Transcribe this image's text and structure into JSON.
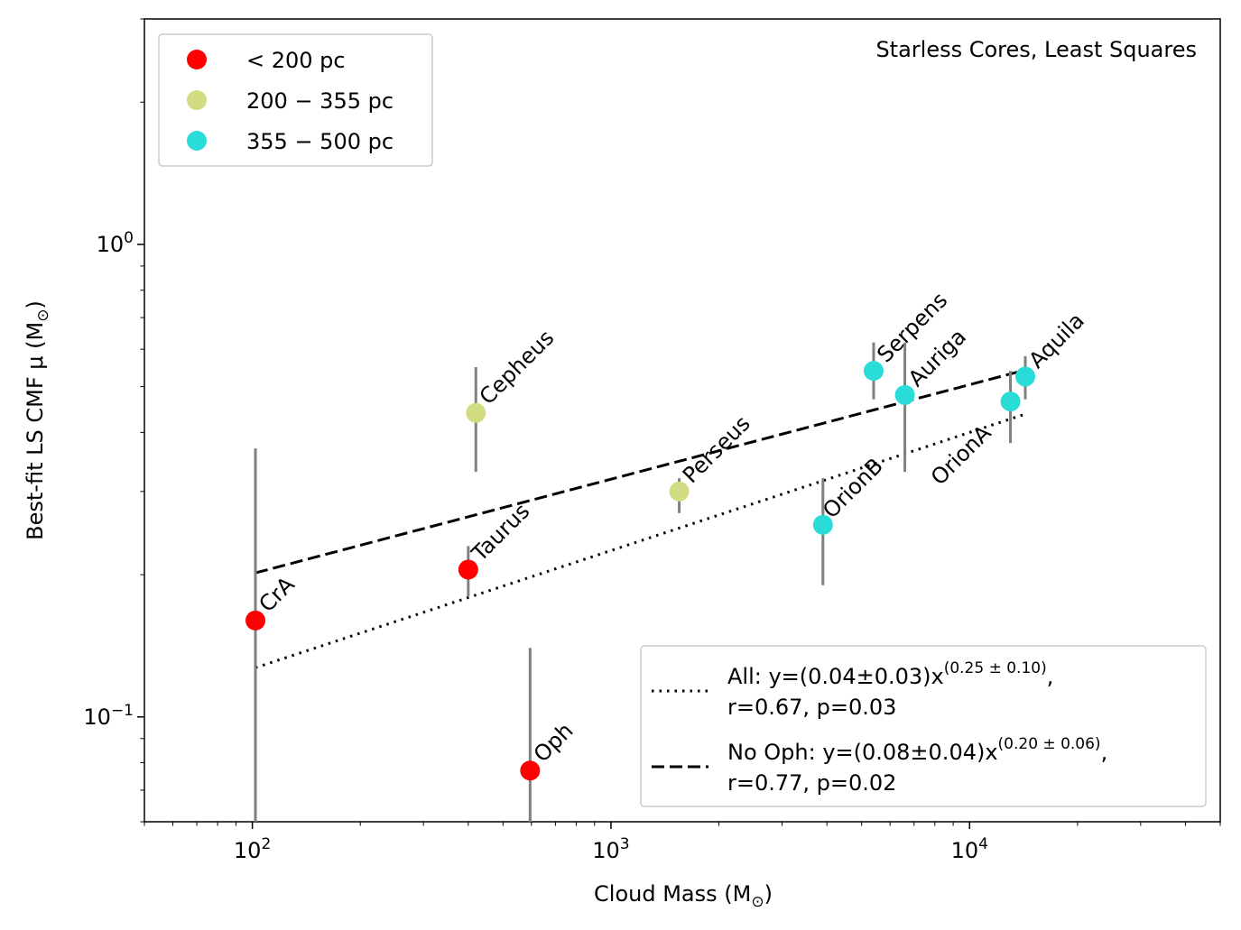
{
  "chart_data": {
    "type": "scatter",
    "annotation": "Starless Cores, Least Squares",
    "xlabel": {
      "main": "Cloud Mass (M",
      "sub": "⊙",
      "end": ")"
    },
    "ylabel": {
      "main": "Best-fit LS CMF μ (M",
      "sub": "⊙",
      "end": ")"
    },
    "x_scale": "log",
    "y_scale": "log",
    "xlim": [
      50,
      50000
    ],
    "ylim": [
      0.06,
      3.0
    ],
    "x_ticks": [
      {
        "value": 100,
        "base": "10",
        "exp": "2"
      },
      {
        "value": 1000,
        "base": "10",
        "exp": "3"
      },
      {
        "value": 10000,
        "base": "10",
        "exp": "4"
      }
    ],
    "y_ticks": [
      {
        "value": 1.0,
        "base": "10",
        "exp": "0"
      },
      {
        "value": 0.1,
        "base": "10",
        "exp": "−1"
      }
    ],
    "groups": [
      {
        "key": "near",
        "label": "< 200 pc",
        "color": "#ff0000"
      },
      {
        "key": "mid",
        "label": "200 − 355 pc",
        "color": "#d2dc82"
      },
      {
        "key": "far",
        "label": "355 − 500 pc",
        "color": "#2adcd8"
      }
    ],
    "points": [
      {
        "name": "CrA",
        "x": 102,
        "y": 0.16,
        "ylo": 0.06,
        "yhi": 0.37,
        "group": "near"
      },
      {
        "name": "Taurus",
        "x": 400,
        "y": 0.205,
        "ylo": 0.18,
        "yhi": 0.23,
        "group": "near"
      },
      {
        "name": "Oph",
        "x": 595,
        "y": 0.077,
        "ylo": 0.06,
        "yhi": 0.14,
        "group": "near"
      },
      {
        "name": "Cepheus",
        "x": 420,
        "y": 0.44,
        "ylo": 0.33,
        "yhi": 0.55,
        "group": "mid"
      },
      {
        "name": "Perseus",
        "x": 1550,
        "y": 0.3,
        "ylo": 0.27,
        "yhi": 0.32,
        "group": "mid"
      },
      {
        "name": "OrionB",
        "x": 3900,
        "y": 0.255,
        "ylo": 0.19,
        "yhi": 0.32,
        "group": "far"
      },
      {
        "name": "Serpens",
        "x": 5400,
        "y": 0.54,
        "ylo": 0.47,
        "yhi": 0.62,
        "group": "far"
      },
      {
        "name": "Auriga",
        "x": 6600,
        "y": 0.48,
        "ylo": 0.33,
        "yhi": 0.62,
        "group": "far"
      },
      {
        "name": "OrionA",
        "x": 13000,
        "y": 0.465,
        "ylo": 0.38,
        "yhi": 0.54,
        "group": "far"
      },
      {
        "name": "Aquila",
        "x": 14300,
        "y": 0.525,
        "ylo": 0.47,
        "yhi": 0.58,
        "group": "far"
      }
    ],
    "fits": [
      {
        "name": "All",
        "style": "dotted",
        "x_range": [
          102,
          14300
        ],
        "label_main": "All: y=(0.04±0.03)x",
        "label_exp": "(0.25 ± 0.10)",
        "label_tail": ",",
        "label_line2": " r=0.67, p=0.03"
      },
      {
        "name": "No Oph",
        "style": "dashed",
        "x_range": [
          102,
          14300
        ],
        "label_main": "No Oph: y=(0.08±0.04)x",
        "label_exp": "(0.20 ± 0.06)",
        "label_tail": ",",
        "label_line2": " r=0.77, p=0.02"
      }
    ],
    "fit_params": {
      "All": {
        "a": 0.04,
        "b": 0.25
      },
      "No Oph": {
        "a": 0.08,
        "b": 0.2
      }
    },
    "legend_groups_placement": "top-left",
    "legend_fits_placement": "bottom-right",
    "grid": false,
    "errorbar_color": "#808080",
    "line_color": "#000000"
  }
}
